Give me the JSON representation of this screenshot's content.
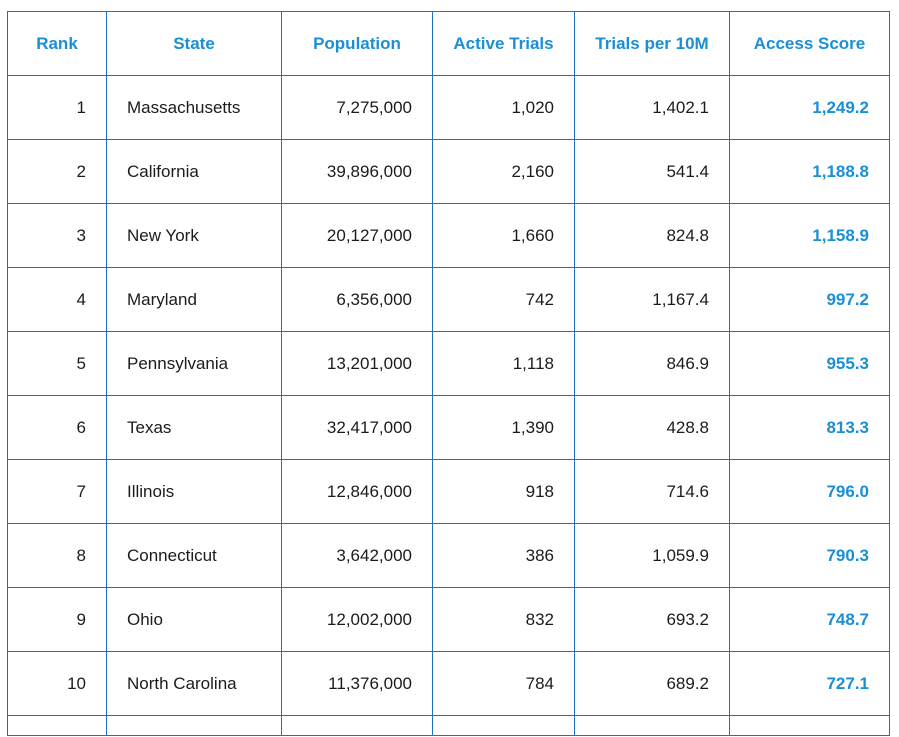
{
  "headers": {
    "rank": "Rank",
    "state": "State",
    "population": "Population",
    "active_trials": "Active Trials",
    "trials_per_10m": "Trials per 10M",
    "access_score": "Access Score"
  },
  "rows": [
    {
      "rank": "1",
      "state": "Massachusetts",
      "population": "7,275,000",
      "active_trials": "1,020",
      "trials_per_10m": "1,402.1",
      "access_score": "1,249.2"
    },
    {
      "rank": "2",
      "state": "California",
      "population": "39,896,000",
      "active_trials": "2,160",
      "trials_per_10m": "541.4",
      "access_score": "1,188.8"
    },
    {
      "rank": "3",
      "state": "New York",
      "population": "20,127,000",
      "active_trials": "1,660",
      "trials_per_10m": "824.8",
      "access_score": "1,158.9"
    },
    {
      "rank": "4",
      "state": "Maryland",
      "population": "6,356,000",
      "active_trials": "742",
      "trials_per_10m": "1,167.4",
      "access_score": "997.2"
    },
    {
      "rank": "5",
      "state": "Pennsylvania",
      "population": "13,201,000",
      "active_trials": "1,118",
      "trials_per_10m": "846.9",
      "access_score": "955.3"
    },
    {
      "rank": "6",
      "state": "Texas",
      "population": "32,417,000",
      "active_trials": "1,390",
      "trials_per_10m": "428.8",
      "access_score": "813.3"
    },
    {
      "rank": "7",
      "state": "Illinois",
      "population": "12,846,000",
      "active_trials": "918",
      "trials_per_10m": "714.6",
      "access_score": "796.0"
    },
    {
      "rank": "8",
      "state": "Connecticut",
      "population": "3,642,000",
      "active_trials": "386",
      "trials_per_10m": "1,059.9",
      "access_score": "790.3"
    },
    {
      "rank": "9",
      "state": "Ohio",
      "population": "12,002,000",
      "active_trials": "832",
      "trials_per_10m": "693.2",
      "access_score": "748.7"
    },
    {
      "rank": "10",
      "state": "North Carolina",
      "population": "11,376,000",
      "active_trials": "784",
      "trials_per_10m": "689.2",
      "access_score": "727.1"
    }
  ],
  "colors": {
    "accent": "#1a8fd6",
    "border": "#1f6fc0",
    "text": "#1b1b1b"
  }
}
